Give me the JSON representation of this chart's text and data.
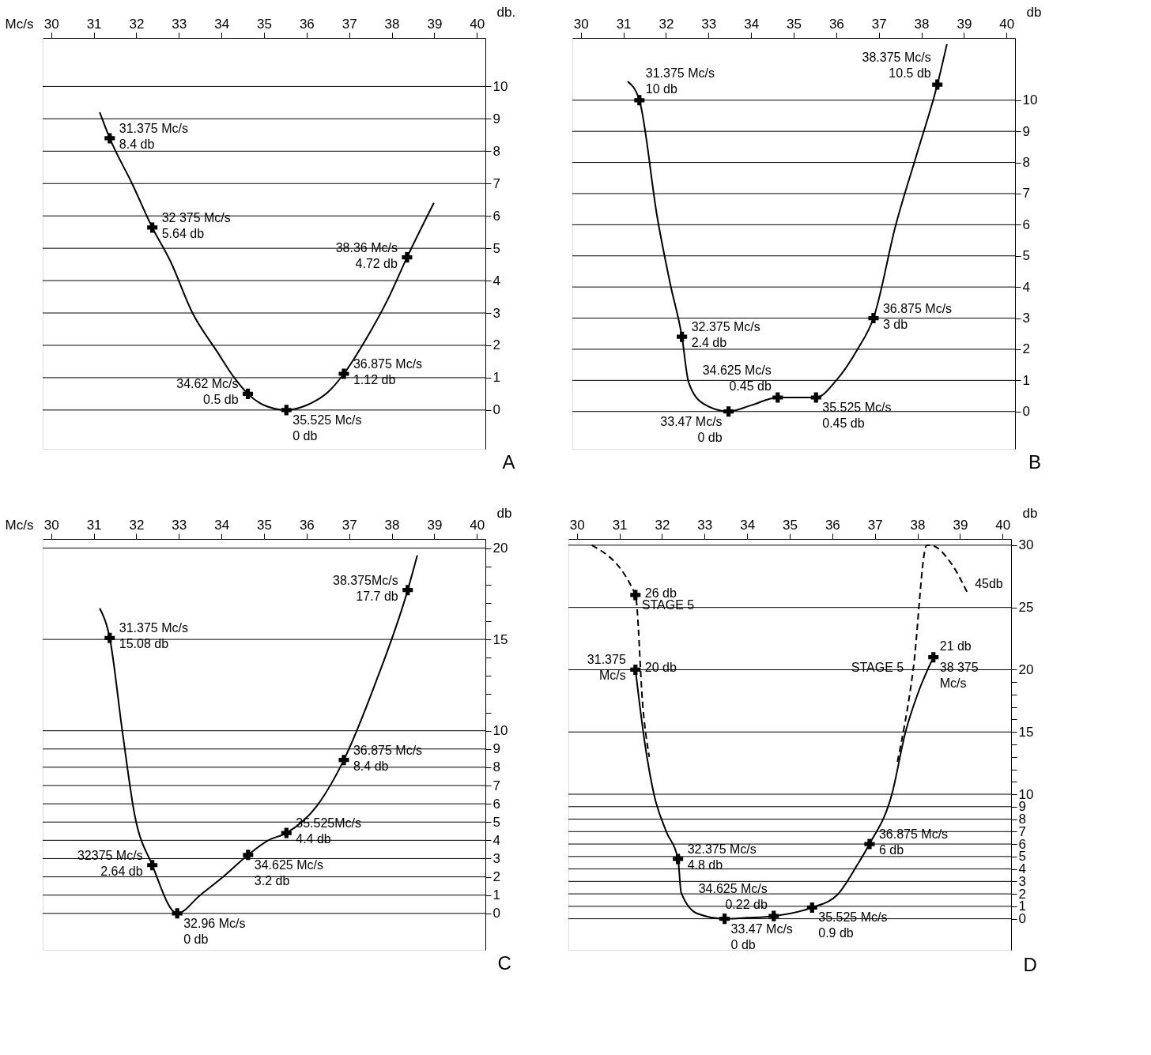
{
  "chart_data": [
    {
      "type": "line",
      "title": "A",
      "xlabel": "Mc/s",
      "ylabel": "db.",
      "xlim": [
        29.8,
        40.2
      ],
      "ylim": [
        -1.2,
        11.5
      ],
      "xticks": [
        30,
        31,
        32,
        33,
        34,
        35,
        36,
        37,
        38,
        39,
        40
      ],
      "yticks": [
        0,
        1,
        2,
        3,
        4,
        5,
        6,
        7,
        8,
        9,
        10
      ],
      "grid": "y",
      "series": [
        {
          "type": "line",
          "color": "#000000",
          "marker": "none",
          "line_style": "solid",
          "x": [
            31.14,
            31.375,
            31.9,
            32.375,
            32.8,
            33.32,
            33.9,
            34.3,
            34.62,
            35.0,
            35.525,
            36.0,
            36.5,
            36.875,
            37.4,
            37.9,
            38.36,
            38.99
          ],
          "values": [
            9.2,
            8.4,
            7.0,
            5.64,
            4.6,
            3.0,
            1.8,
            1.0,
            0.5,
            0.15,
            0,
            0.15,
            0.55,
            1.12,
            2.2,
            3.4,
            4.72,
            6.4
          ]
        },
        {
          "type": "scatter",
          "color": "#000000",
          "marker": "cross",
          "x": [
            31.375,
            32.375,
            34.62,
            35.525,
            36.875,
            38.36
          ],
          "values": [
            8.4,
            5.64,
            0.5,
            0,
            1.12,
            4.72
          ]
        }
      ],
      "annotations": [
        {
          "text": "31.375 Mc/s\n8.4 db",
          "x": 31.375,
          "y": 8.4
        },
        {
          "text": "32 375 Mc/s\n5.64 db",
          "x": 32.375,
          "y": 5.64
        },
        {
          "text": "38.36 Mc/s\n4.72 db",
          "x": 38.36,
          "y": 4.72
        },
        {
          "text": "36.875 Mc/s\n1.12 db",
          "x": 36.875,
          "y": 1.12
        },
        {
          "text": "34.62 Mc/s\n0.5 db",
          "x": 34.62,
          "y": 0.5
        },
        {
          "text": "35.525 Mc/s\n0 db",
          "x": 35.525,
          "y": 0
        }
      ]
    },
    {
      "type": "line",
      "title": "B",
      "ylabel": "db",
      "xlim": [
        29.8,
        40.2
      ],
      "ylim": [
        -1.2,
        12
      ],
      "xticks": [
        30,
        31,
        32,
        33,
        34,
        35,
        36,
        37,
        38,
        39,
        40
      ],
      "yticks": [
        0,
        1,
        2,
        3,
        4,
        5,
        6,
        7,
        8,
        9,
        10
      ],
      "grid": "y",
      "series": [
        {
          "type": "line",
          "color": "#000000",
          "marker": "none",
          "line_style": "solid",
          "x": [
            31.1,
            31.375,
            31.8,
            32.1,
            32.375,
            32.53,
            32.88,
            33.47,
            34.0,
            34.625,
            35.525,
            36.0,
            36.5,
            36.875,
            37.4,
            37.9,
            38.375,
            38.6
          ],
          "values": [
            10.6,
            10,
            6.2,
            4.1,
            2.4,
            0.95,
            0.25,
            0,
            0.2,
            0.45,
            0.45,
            1.0,
            2.0,
            3,
            6,
            8.3,
            10.5,
            11.8
          ]
        },
        {
          "type": "scatter",
          "color": "#000000",
          "marker": "cross",
          "x": [
            31.375,
            32.375,
            33.47,
            34.625,
            35.525,
            36.875,
            38.375
          ],
          "values": [
            10,
            2.4,
            0,
            0.45,
            0.45,
            3,
            10.5
          ]
        }
      ],
      "annotations": [
        {
          "text": "31.375 Mc/s\n10 db",
          "x": 31.375,
          "y": 10
        },
        {
          "text": "38.375 Mc/s\n10.5 db",
          "x": 38.375,
          "y": 10.5
        },
        {
          "text": "32.375 Mc/s\n2.4 db",
          "x": 32.375,
          "y": 2.4
        },
        {
          "text": "36.875 Mc/s\n3 db",
          "x": 36.875,
          "y": 3
        },
        {
          "text": "35.525 Mc/s\n0.45 db",
          "x": 35.525,
          "y": 0.45
        },
        {
          "text": "34.625 Mc/s\n0.45 db",
          "x": 34.625,
          "y": 0.45
        },
        {
          "text": "33.47 Mc/s\n0 db",
          "x": 33.47,
          "y": 0
        }
      ]
    },
    {
      "type": "line",
      "title": "C",
      "xlabel": "Mc/s",
      "ylabel": "db",
      "xlim": [
        29.8,
        40.2
      ],
      "ylim": [
        -2,
        20.5
      ],
      "xticks": [
        30,
        31,
        32,
        33,
        34,
        35,
        36,
        37,
        38,
        39,
        40
      ],
      "yticks": [
        0,
        1,
        2,
        3,
        4,
        5,
        6,
        7,
        8,
        9,
        10,
        {
          "value": 11,
          "label": null
        },
        {
          "value": 12,
          "label": null
        },
        {
          "value": 13,
          "label": null
        },
        {
          "value": 14,
          "label": null
        },
        15,
        {
          "value": 16,
          "label": null
        },
        {
          "value": 17,
          "label": null
        },
        {
          "value": 18,
          "label": null
        },
        {
          "value": 19,
          "label": null
        },
        20
      ],
      "grid": "y",
      "series": [
        {
          "type": "line",
          "color": "#000000",
          "marker": "none",
          "line_style": "solid",
          "x": [
            31.14,
            31.375,
            31.67,
            31.96,
            32.375,
            32.96,
            33.5,
            34.04,
            34.625,
            35.1,
            35.525,
            36.23,
            36.875,
            37.6,
            38.375,
            38.6
          ],
          "values": [
            16.7,
            15.08,
            10,
            5.4,
            2.64,
            0,
            1.0,
            2.0,
            3.2,
            4.0,
            4.4,
            5.85,
            8.4,
            12.5,
            17.7,
            19.6
          ]
        },
        {
          "type": "scatter",
          "color": "#000000",
          "marker": "cross",
          "x": [
            31.375,
            32.375,
            32.96,
            34.625,
            35.525,
            36.875,
            38.375
          ],
          "values": [
            15.08,
            2.64,
            0,
            3.2,
            4.4,
            8.4,
            17.7
          ]
        }
      ],
      "annotations": [
        {
          "text": "31.375 Mc/s\n15.08 db",
          "x": 31.375,
          "y": 15.08
        },
        {
          "text": "38.375Mc/s\n17.7 db",
          "x": 38.375,
          "y": 17.7
        },
        {
          "text": "36.875 Mc/s\n8.4 db",
          "x": 36.875,
          "y": 8.4
        },
        {
          "text": "35.525Mc/s\n4.4 db",
          "x": 35.525,
          "y": 4.4
        },
        {
          "text": "34.625 Mc/s\n3.2 db",
          "x": 34.625,
          "y": 3.2
        },
        {
          "text": "32375 Mc/s\n2.64 db",
          "x": 32.375,
          "y": 2.64
        },
        {
          "text": "32.96 Mc/s\n0 db",
          "x": 32.96,
          "y": 0
        }
      ]
    },
    {
      "type": "line",
      "title": "D",
      "ylabel": "db",
      "xlim": [
        29.8,
        40.2
      ],
      "ylim": [
        -2.5,
        30.5
      ],
      "xticks": [
        30,
        31,
        32,
        33,
        34,
        35,
        36,
        37,
        38,
        39,
        40
      ],
      "yticks": [
        0,
        1,
        2,
        3,
        4,
        5,
        6,
        7,
        8,
        9,
        10,
        {
          "value": 11,
          "label": null
        },
        {
          "value": 12,
          "label": null
        },
        {
          "value": 13,
          "label": null
        },
        {
          "value": 14,
          "label": null
        },
        15,
        {
          "value": 16,
          "label": null
        },
        {
          "value": 17,
          "label": null
        },
        {
          "value": 18,
          "label": null
        },
        {
          "value": 19,
          "label": null
        },
        20,
        25,
        30
      ],
      "grid": "y",
      "series": [
        {
          "type": "line",
          "color": "#000000",
          "marker": "none",
          "line_style": "solid",
          "x": [
            31.375,
            31.6,
            31.81,
            32.1,
            32.375,
            32.45,
            32.84,
            33.47,
            34.0,
            34.625,
            35.525,
            36.12,
            36.6,
            36.875,
            37.4,
            37.72,
            38.0,
            38.375
          ],
          "values": [
            20,
            14,
            10,
            7.0,
            4.8,
            2.1,
            0.4,
            0,
            0.08,
            0.22,
            0.9,
            1.93,
            4.4,
            6,
            10,
            15,
            18,
            21
          ]
        },
        {
          "type": "line",
          "color": "#000000",
          "marker": "none",
          "line_style": "dashed",
          "x": [
            30.35,
            31.375,
            31.55,
            31.7
          ],
          "values": [
            30,
            26,
            17,
            13
          ]
        },
        {
          "type": "line",
          "color": "#000000",
          "marker": "none",
          "line_style": "dashed",
          "x": [
            37.53,
            37.9,
            38.22,
            38.3,
            38.8,
            39.2
          ],
          "values": [
            12.6,
            20,
            30,
            30,
            28.5,
            26
          ]
        },
        {
          "type": "scatter",
          "color": "#000000",
          "marker": "cross",
          "x": [
            31.375,
            31.375,
            32.375,
            33.47,
            34.625,
            35.525,
            36.875,
            38.375
          ],
          "values": [
            26,
            20,
            4.8,
            0,
            0.22,
            0.9,
            6,
            21
          ]
        }
      ],
      "annotations": [
        {
          "text": "26 db",
          "x": 31.375,
          "y": 26
        },
        {
          "text": "31.375\nMc/s",
          "x": 31.375,
          "y": 20
        },
        {
          "text": "20 db",
          "x": 31.375,
          "y": 20
        },
        {
          "text": "STAGE 5",
          "x": 31.375,
          "y": 26
        },
        {
          "text": "STAGE 5",
          "x": 37.9,
          "y": 20
        },
        {
          "text": "45db",
          "x": 39.2,
          "y": 26
        },
        {
          "text": "21 db",
          "x": 38.375,
          "y": 21
        },
        {
          "text": "38 375\nMc/s",
          "x": 38.375,
          "y": 21
        },
        {
          "text": "36.875 Mc/s\n6 db",
          "x": 36.875,
          "y": 6
        },
        {
          "text": "32.375 Mc/s\n4.8 db",
          "x": 32.375,
          "y": 4.8
        },
        {
          "text": "35.525 Mc/s\n0.9 db",
          "x": 35.525,
          "y": 0.9
        },
        {
          "text": "34.625 Mc/s\n0.22 db",
          "x": 34.625,
          "y": 0.22
        },
        {
          "text": "33.47 Mc/s\n0 db",
          "x": 33.47,
          "y": 0
        }
      ]
    }
  ]
}
